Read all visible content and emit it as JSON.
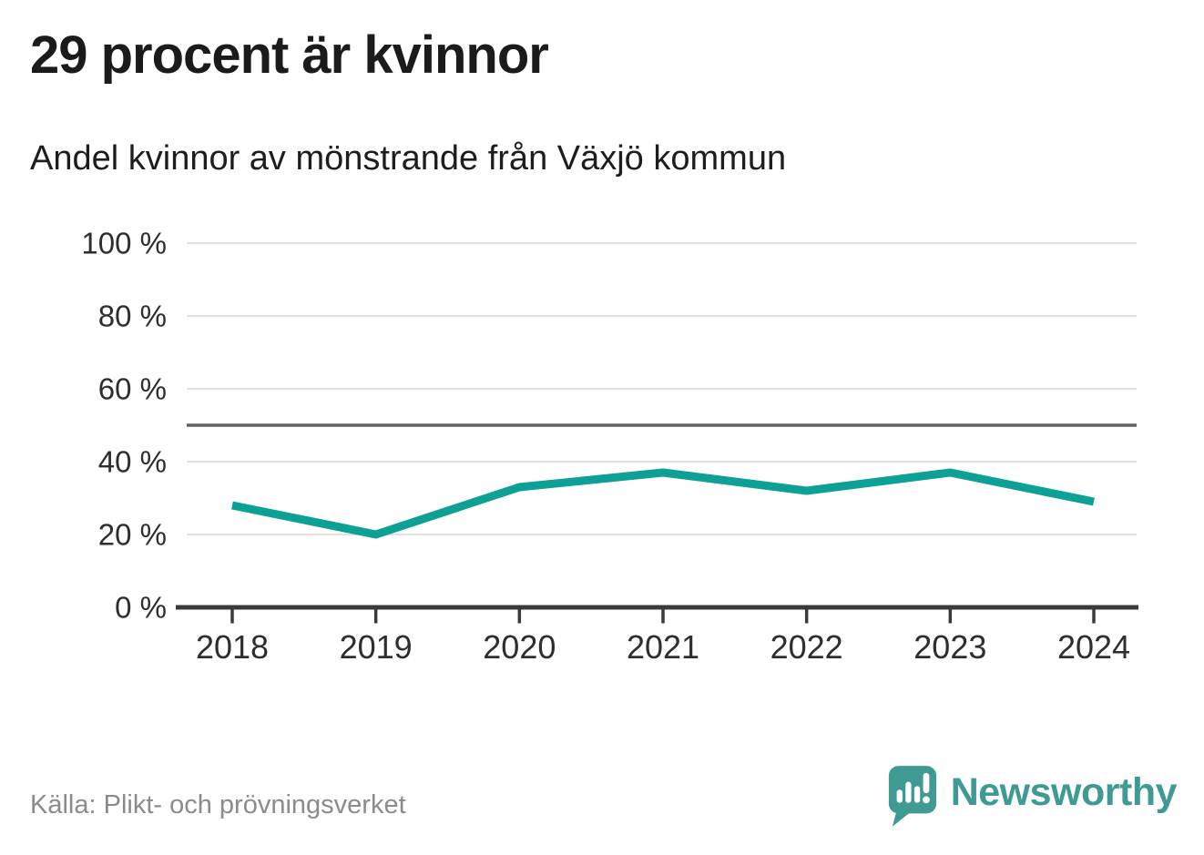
{
  "header": {
    "title": "29 procent är kvinnor",
    "subtitle": "Andel kvinnor av mönstrande från Växjö kommun"
  },
  "chart_data": {
    "type": "line",
    "title": "29 procent är kvinnor",
    "subtitle": "Andel kvinnor av mönstrande från Växjö kommun",
    "categories": [
      "2018",
      "2019",
      "2020",
      "2021",
      "2022",
      "2023",
      "2024"
    ],
    "series": [
      {
        "name": "Andel kvinnor av mönstrande",
        "values": [
          28,
          20,
          33,
          37,
          32,
          37,
          29
        ]
      }
    ],
    "xlabel": "",
    "ylabel": "",
    "ylim": [
      0,
      100
    ],
    "yticks": [
      0,
      20,
      40,
      60,
      80,
      100
    ],
    "ytick_suffix": " %",
    "reference_line": 50,
    "grid": true,
    "legend": "none",
    "line_color": "#0da094"
  },
  "footer": {
    "source": "Källa: Plikt- och prövningsverket",
    "brand": "Newsworthy"
  },
  "colors": {
    "line": "#0da094",
    "reference_line": "#62626d",
    "grid": "#e2e2e2",
    "axis": "#3a3a3a",
    "tick_text": "#2e2e2e",
    "title_text": "#1b1b1b",
    "source_text": "#8b8b8b",
    "brand_teal": "#3e9a93"
  }
}
